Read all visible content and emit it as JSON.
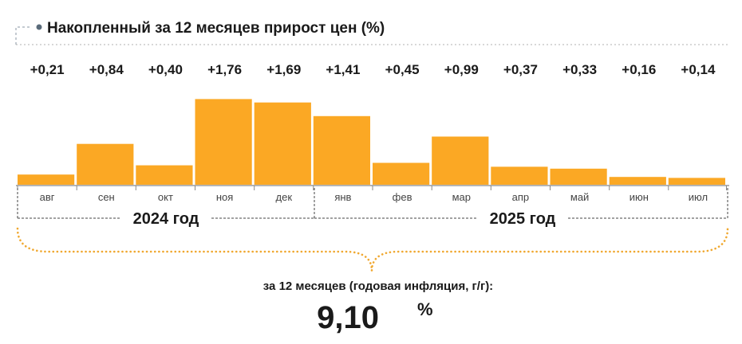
{
  "chart_data": {
    "type": "bar",
    "title": "Накопленный за 12 месяцев прирост цен (%)",
    "categories": [
      "авг",
      "сен",
      "окт",
      "ноя",
      "дек",
      "янв",
      "фев",
      "мар",
      "апр",
      "май",
      "июн",
      "июл"
    ],
    "values": [
      0.21,
      0.84,
      0.4,
      1.76,
      1.69,
      1.41,
      0.45,
      0.99,
      0.37,
      0.33,
      0.16,
      0.14
    ],
    "value_labels": [
      "+0,21",
      "+0,84",
      "+0,40",
      "+1,76",
      "+1,69",
      "+1,41",
      "+0,45",
      "+0,99",
      "+0,37",
      "+0,33",
      "+0,16",
      "+0,14"
    ],
    "year_groups": [
      {
        "label": "2024 год",
        "categories": [
          "авг",
          "сен",
          "окт",
          "ноя",
          "дек"
        ]
      },
      {
        "label": "2025 год",
        "categories": [
          "янв",
          "фев",
          "мар",
          "апр",
          "май",
          "июн",
          "июл"
        ]
      }
    ],
    "ylim": [
      0,
      1.8
    ],
    "xlabel": "",
    "ylabel": "",
    "grid": false,
    "legend": "none",
    "bar_color": "#FBA824",
    "summary": {
      "label": "за 12 месяцев (годовая инфляция, г/г):",
      "value": "9,10",
      "unit": "%"
    }
  },
  "colors": {
    "bar": "#FBA824",
    "text": "#1a1a1a",
    "axis": "#888888",
    "brace": "#F0A830",
    "title_marker": "#5a6b7a"
  }
}
